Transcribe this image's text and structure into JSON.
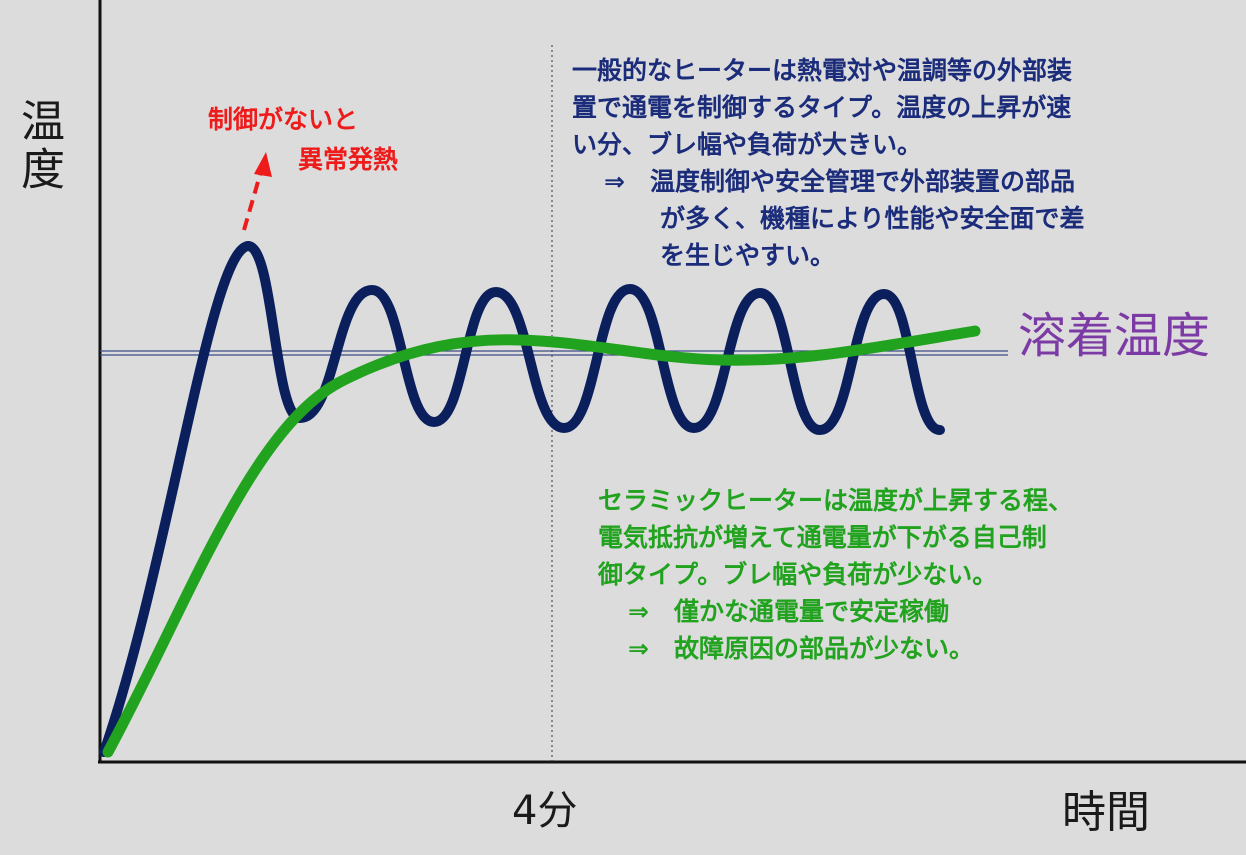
{
  "chart_data": {
    "type": "line",
    "ylabel": "温度",
    "xlabel": "時間",
    "x_tick": "4分",
    "target_label": "溶着温度",
    "series": [
      {
        "color": "#0b1f5c",
        "type": "oscillating-line"
      },
      {
        "color": "#22a31f",
        "type": "smooth-rise-line"
      }
    ],
    "annotations": {
      "no_control_line1": "制御がないと",
      "no_control_line2": "異常発熱",
      "general_heater": [
        "一般的なヒーターは熱電対や温調等の外部装",
        "置で通電を制御するタイプ。温度の上昇が速",
        "い分、ブレ幅や負荷が大きい。",
        "⇒　温度制御や安全管理で外部装置の部品",
        "が多く、機種により性能や安全面で差",
        "を生じやすい。"
      ],
      "ceramic_heater": [
        "セラミックヒーターは温度が上昇する程、",
        "電気抵抗が増えて通電量が下がる自己制",
        "御タイプ。ブレ幅や負荷が少ない。",
        "⇒　僅かな通電量で安定稼働",
        "⇒　故障原因の部品が少ない。"
      ]
    }
  }
}
